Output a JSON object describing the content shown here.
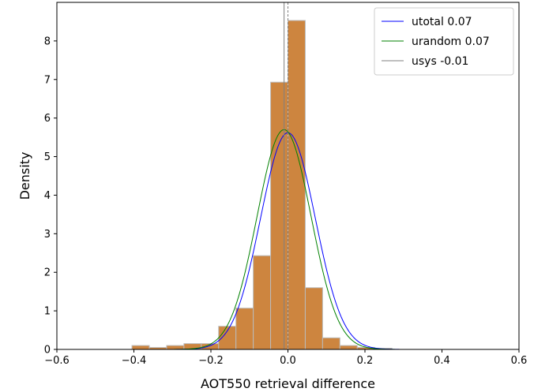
{
  "chart_data": {
    "type": "bar",
    "title": "",
    "xlabel": "AOT550 retrieval difference",
    "ylabel": "Density",
    "xlim": [
      -0.6,
      0.6
    ],
    "ylim": [
      0,
      9.0
    ],
    "xticks": [
      -0.6,
      -0.4,
      -0.2,
      0.0,
      0.2,
      0.4,
      0.6
    ],
    "xtick_labels": [
      "−0.6",
      "−0.4",
      "−0.2",
      "0.0",
      "0.2",
      "0.4",
      "0.6"
    ],
    "yticks": [
      0,
      1,
      2,
      3,
      4,
      5,
      6,
      7,
      8
    ],
    "ytick_labels": [
      "0",
      "1",
      "2",
      "3",
      "4",
      "5",
      "6",
      "7",
      "8"
    ],
    "grid": false,
    "legend_position": "top-right",
    "histogram": {
      "bin_edges": [
        -0.405,
        -0.36,
        -0.315,
        -0.27,
        -0.225,
        -0.18,
        -0.135,
        -0.09,
        -0.045,
        0.0,
        0.045,
        0.09,
        0.135,
        0.18,
        0.225,
        0.27
      ],
      "values": [
        0.1,
        0.05,
        0.1,
        0.15,
        0.15,
        0.6,
        1.07,
        2.43,
        6.93,
        8.53,
        1.6,
        0.3,
        0.1,
        0.05,
        0.03
      ],
      "fill_color": "#cd853f",
      "edge_color": "#bbbbbb"
    },
    "series": [
      {
        "name": "utotal 0.07",
        "kind": "normal_pdf",
        "mu": 0.0,
        "sigma": 0.071,
        "color": "#0000ff"
      },
      {
        "name": "urandom 0.07",
        "kind": "normal_pdf",
        "mu": -0.01,
        "sigma": 0.07,
        "color": "#008000"
      },
      {
        "name": "usys -0.01",
        "kind": "vline",
        "x": -0.01,
        "color": "#808080"
      }
    ],
    "reference_lines": [
      {
        "x": 0.0,
        "style": "dashed",
        "color": "#808080"
      }
    ]
  }
}
